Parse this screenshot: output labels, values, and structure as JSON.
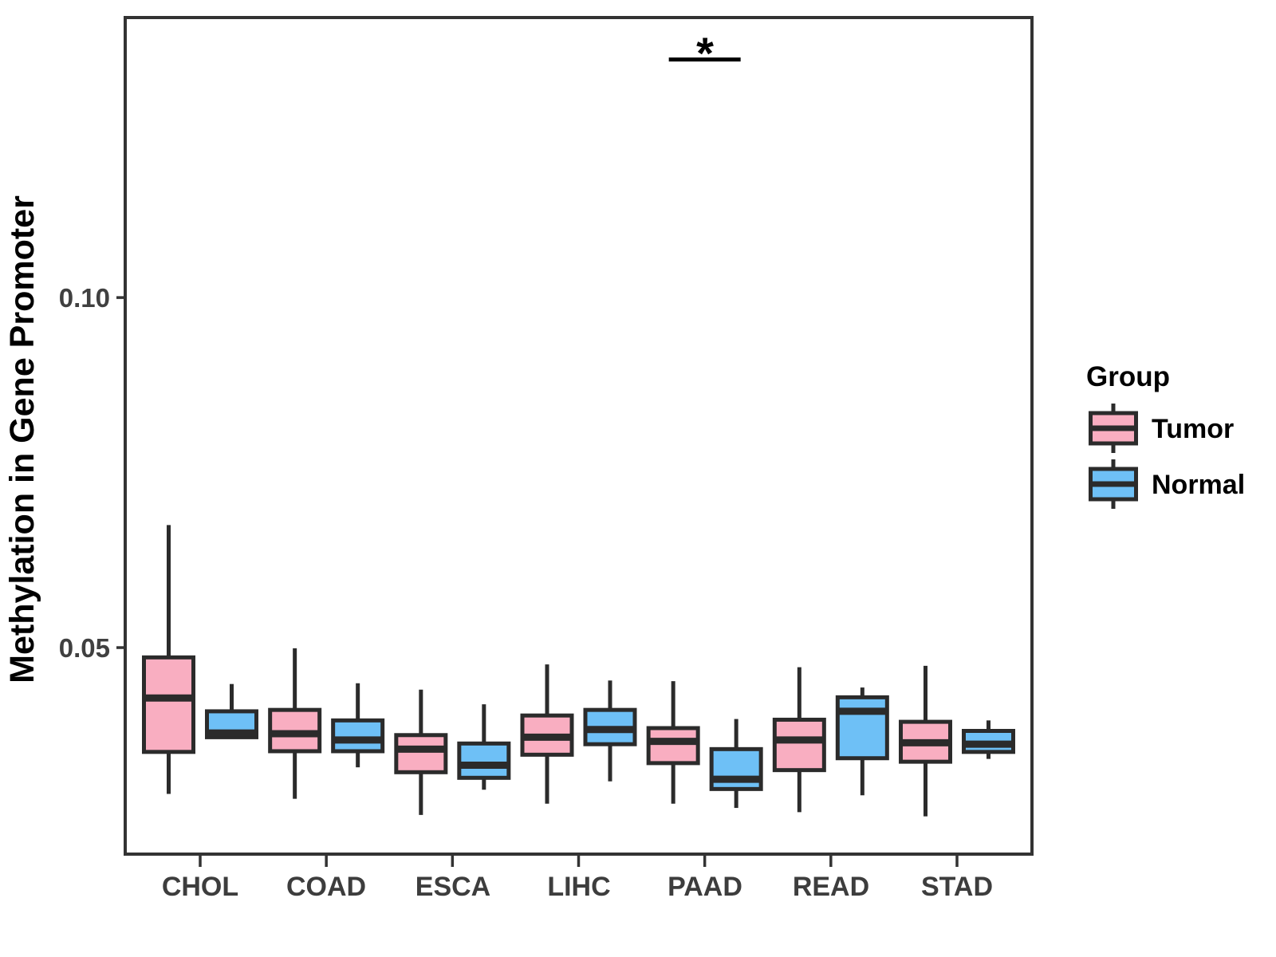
{
  "chart_data": {
    "type": "boxplot",
    "title": "",
    "xlabel": "",
    "ylabel": "Methylation in Gene Promoter",
    "categories": [
      "CHOL",
      "COAD",
      "ESCA",
      "LIHC",
      "PAAD",
      "READ",
      "STAD"
    ],
    "ylim": [
      0.0205,
      0.14
    ],
    "yticks": [
      {
        "value": 0.05,
        "label": "0.05"
      },
      {
        "value": 0.1,
        "label": "0.10"
      }
    ],
    "grid": false,
    "legend": {
      "title": "Group",
      "position": "right"
    },
    "series": [
      {
        "name": "Tumor",
        "color": "#F9AEC1",
        "boxes": [
          {
            "category": "CHOL",
            "lo": 0.0291,
            "q1": 0.0351,
            "med": 0.0428,
            "q3": 0.0486,
            "hi": 0.0675
          },
          {
            "category": "COAD",
            "lo": 0.0284,
            "q1": 0.0352,
            "med": 0.0377,
            "q3": 0.0411,
            "hi": 0.0499
          },
          {
            "category": "ESCA",
            "lo": 0.0261,
            "q1": 0.0322,
            "med": 0.0355,
            "q3": 0.0375,
            "hi": 0.044
          },
          {
            "category": "LIHC",
            "lo": 0.0277,
            "q1": 0.0347,
            "med": 0.0372,
            "q3": 0.0403,
            "hi": 0.0476
          },
          {
            "category": "PAAD",
            "lo": 0.0277,
            "q1": 0.0335,
            "med": 0.0366,
            "q3": 0.0385,
            "hi": 0.0452
          },
          {
            "category": "READ",
            "lo": 0.0265,
            "q1": 0.0325,
            "med": 0.0368,
            "q3": 0.0397,
            "hi": 0.0472
          },
          {
            "category": "STAD",
            "lo": 0.0259,
            "q1": 0.0337,
            "med": 0.0364,
            "q3": 0.0394,
            "hi": 0.0474
          }
        ]
      },
      {
        "name": "Normal",
        "color": "#6EC0F6",
        "boxes": [
          {
            "category": "CHOL",
            "lo": 0.0372,
            "q1": 0.0372,
            "med": 0.0378,
            "q3": 0.0409,
            "hi": 0.0448
          },
          {
            "category": "COAD",
            "lo": 0.0329,
            "q1": 0.0352,
            "med": 0.0368,
            "q3": 0.0396,
            "hi": 0.0449
          },
          {
            "category": "ESCA",
            "lo": 0.0297,
            "q1": 0.0314,
            "med": 0.0332,
            "q3": 0.0363,
            "hi": 0.0419
          },
          {
            "category": "LIHC",
            "lo": 0.0309,
            "q1": 0.0362,
            "med": 0.0383,
            "q3": 0.0411,
            "hi": 0.0453
          },
          {
            "category": "PAAD",
            "lo": 0.0271,
            "q1": 0.0298,
            "med": 0.0312,
            "q3": 0.0355,
            "hi": 0.0398
          },
          {
            "category": "READ",
            "lo": 0.0289,
            "q1": 0.0342,
            "med": 0.0409,
            "q3": 0.0429,
            "hi": 0.0443
          },
          {
            "category": "STAD",
            "lo": 0.0341,
            "q1": 0.0351,
            "med": 0.0362,
            "q3": 0.0381,
            "hi": 0.0396
          }
        ]
      }
    ],
    "annotations": [
      {
        "type": "significance_bar",
        "label": "*",
        "category": "PAAD",
        "y": 0.134
      }
    ]
  },
  "colors": {
    "box_stroke": "#2B2B2B",
    "panel_border": "#333333",
    "tick": "#333333",
    "significance": "#000000"
  }
}
